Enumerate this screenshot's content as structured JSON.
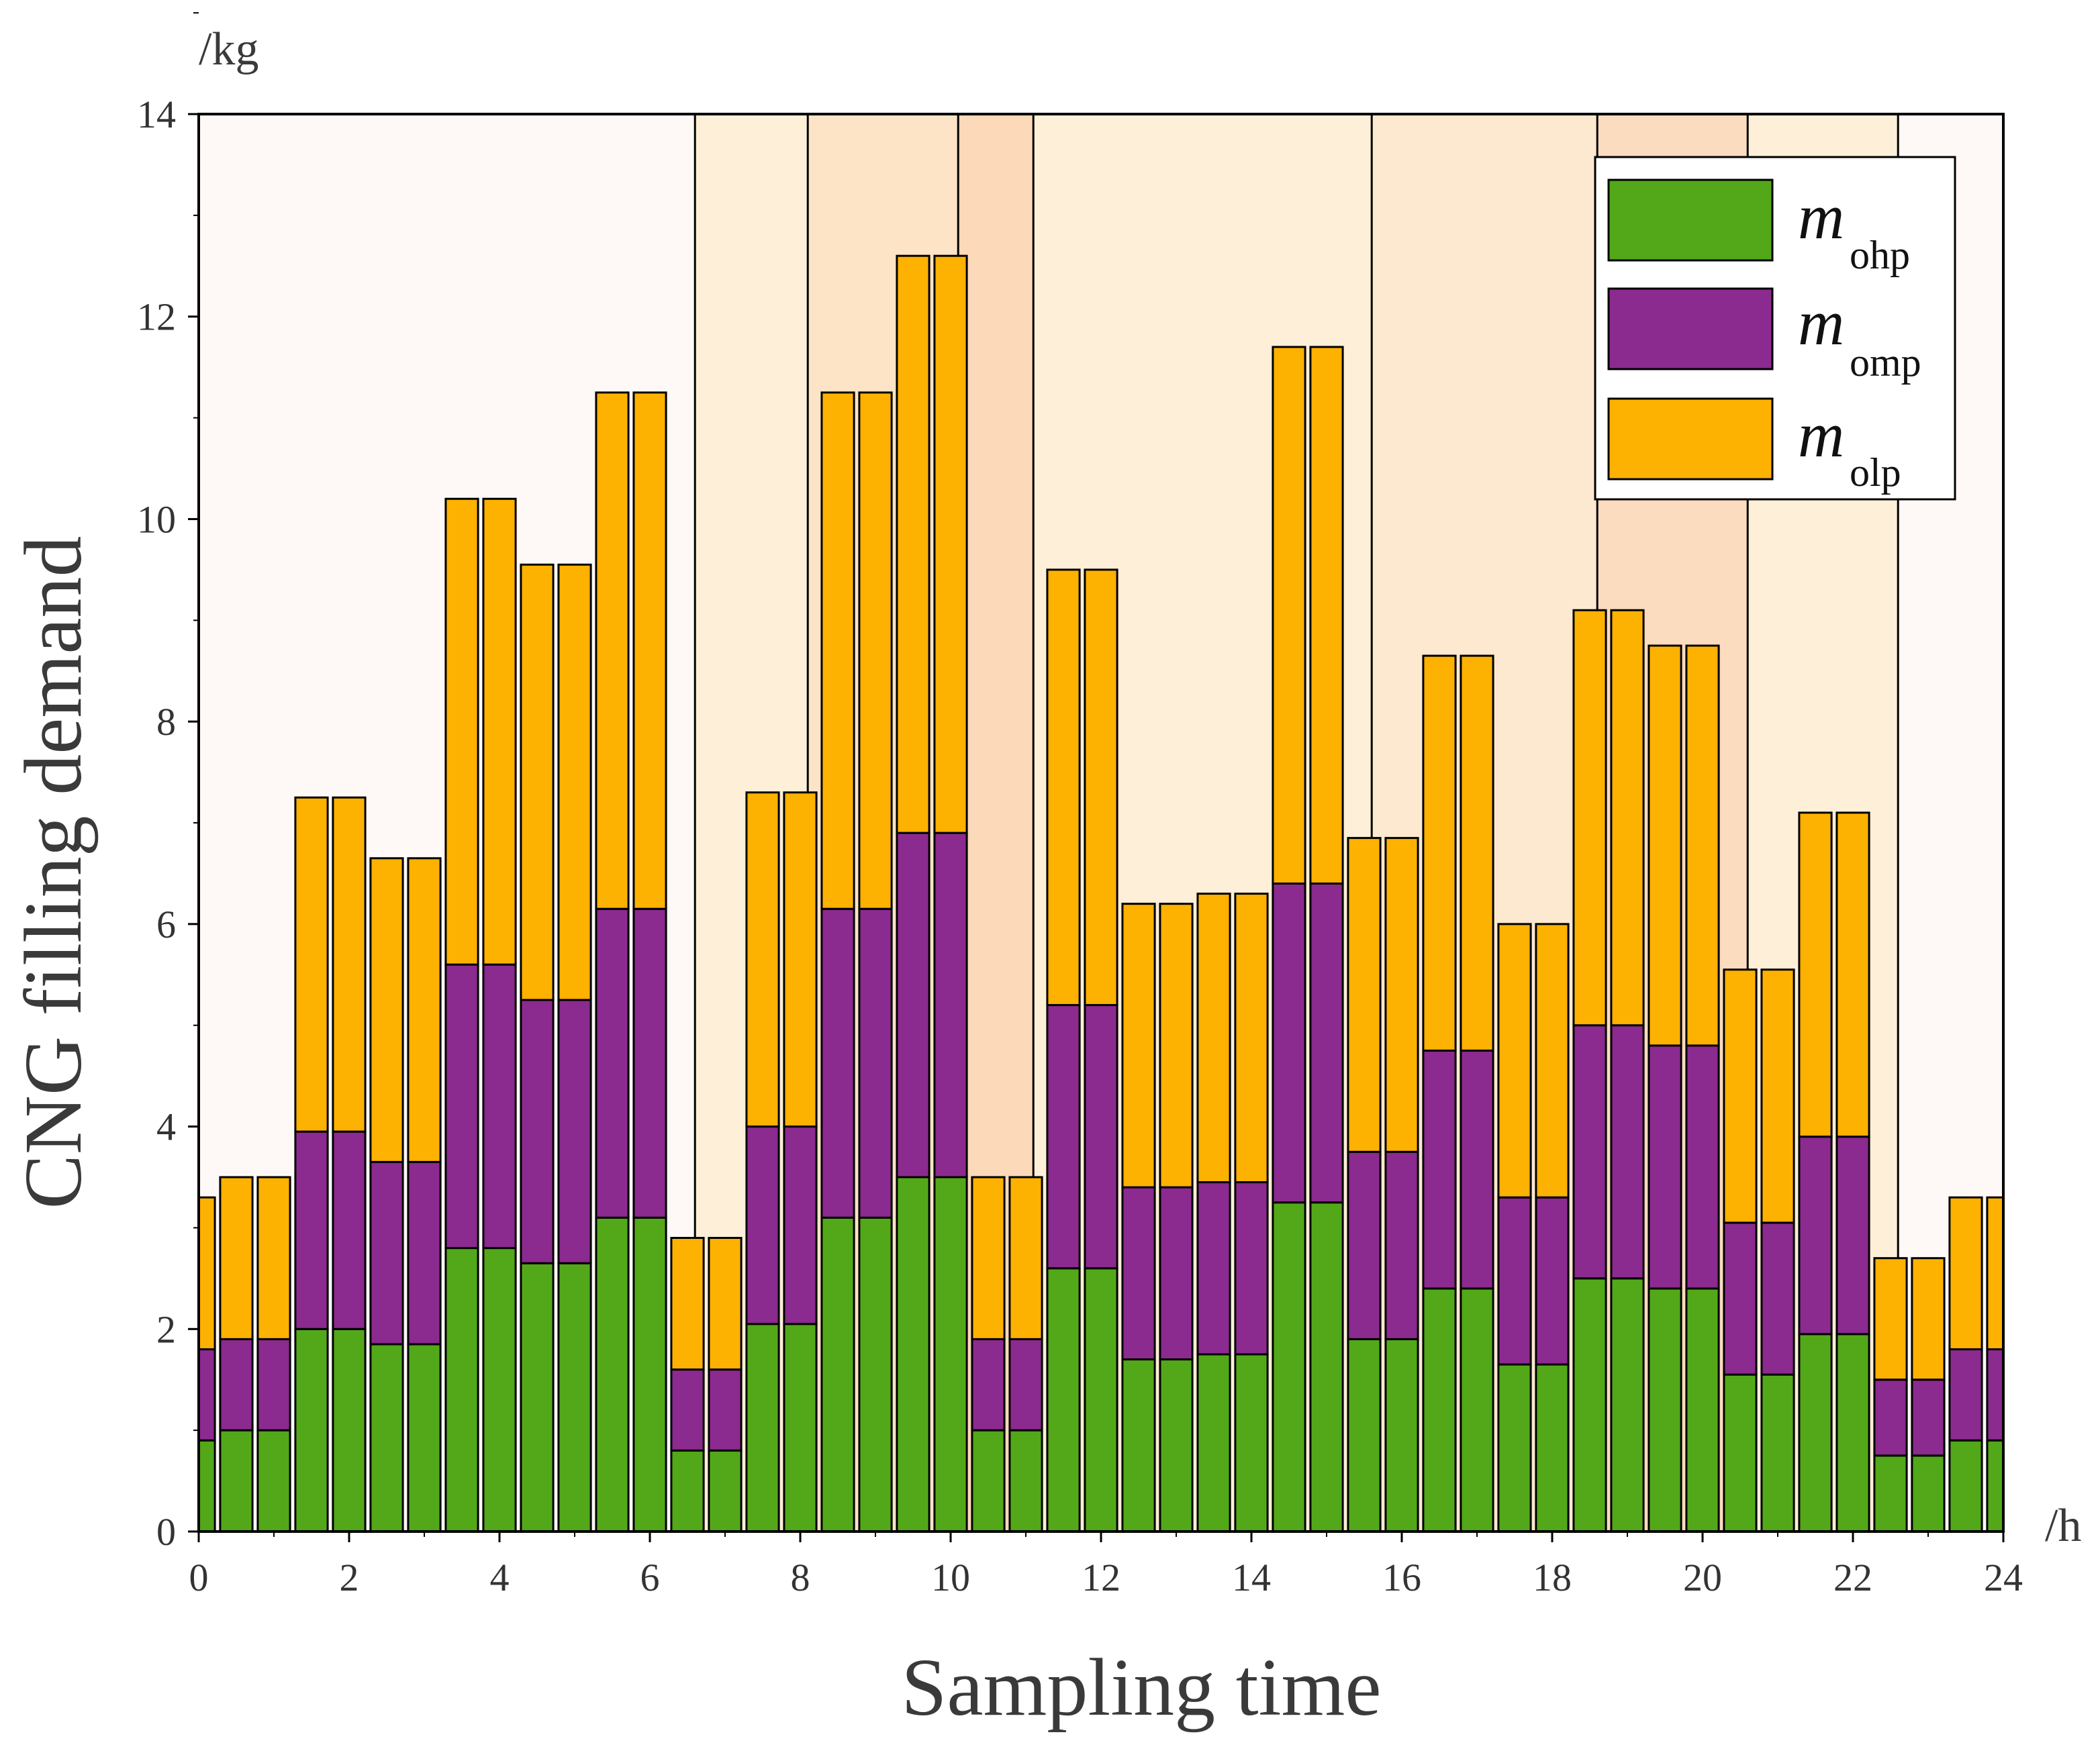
{
  "chart_data": {
    "type": "bar",
    "stacked": true,
    "title": "",
    "xlabel": "Sampling time",
    "ylabel": "CNG filling demand",
    "x_unit": "/h",
    "y_unit": "/kg",
    "xlim": [
      0,
      24
    ],
    "ylim": [
      0,
      14
    ],
    "x_ticks": [
      0,
      2,
      4,
      6,
      8,
      10,
      12,
      14,
      16,
      18,
      20,
      22,
      24
    ],
    "y_ticks": [
      0,
      2,
      4,
      6,
      8,
      10,
      12,
      14
    ],
    "x": [
      0,
      0.5,
      1,
      1.5,
      2,
      2.5,
      3,
      3.5,
      4,
      4.5,
      5,
      5.5,
      6,
      6.5,
      7,
      7.5,
      8,
      8.5,
      9,
      9.5,
      10,
      10.5,
      11,
      11.5,
      12,
      12.5,
      13,
      13.5,
      14,
      14.5,
      15,
      15.5,
      16,
      16.5,
      17,
      17.5,
      18,
      18.5,
      19,
      19.5,
      20,
      20.5,
      21,
      21.5,
      22,
      22.5,
      23,
      23.5,
      24
    ],
    "series": [
      {
        "name": "ohp",
        "color": "#52a818",
        "values": [
          0.9,
          1.0,
          1.0,
          2.0,
          2.0,
          1.85,
          1.85,
          2.8,
          2.8,
          2.65,
          2.65,
          3.1,
          3.1,
          0.8,
          0.8,
          2.05,
          2.05,
          3.1,
          3.1,
          3.5,
          3.5,
          1.0,
          1.0,
          2.6,
          2.6,
          1.7,
          1.7,
          1.75,
          1.75,
          3.25,
          3.25,
          1.9,
          1.9,
          2.4,
          2.4,
          1.65,
          1.65,
          2.5,
          2.5,
          2.4,
          2.4,
          1.55,
          1.55,
          1.95,
          1.95,
          0.75,
          0.75,
          0.9,
          0.9
        ]
      },
      {
        "name": "omp",
        "color": "#8b2a8f",
        "values": [
          0.9,
          0.9,
          0.9,
          1.95,
          1.95,
          1.8,
          1.8,
          2.8,
          2.8,
          2.6,
          2.6,
          3.05,
          3.05,
          0.8,
          0.8,
          1.95,
          1.95,
          3.05,
          3.05,
          3.4,
          3.4,
          0.9,
          0.9,
          2.6,
          2.6,
          1.7,
          1.7,
          1.7,
          1.7,
          3.15,
          3.15,
          1.85,
          1.85,
          2.35,
          2.35,
          1.65,
          1.65,
          2.5,
          2.5,
          2.4,
          2.4,
          1.5,
          1.5,
          1.95,
          1.95,
          0.75,
          0.75,
          0.9,
          0.9
        ]
      },
      {
        "name": "olp",
        "color": "#fdb100",
        "values": [
          1.5,
          1.6,
          1.6,
          3.3,
          3.3,
          3.0,
          3.0,
          4.6,
          4.6,
          4.3,
          4.3,
          5.1,
          5.1,
          1.3,
          1.3,
          3.3,
          3.3,
          5.1,
          5.1,
          5.7,
          5.7,
          1.6,
          1.6,
          4.3,
          4.3,
          2.8,
          2.8,
          2.85,
          2.85,
          5.3,
          5.3,
          3.1,
          3.1,
          3.9,
          3.9,
          2.7,
          2.7,
          4.1,
          4.1,
          3.95,
          3.95,
          2.5,
          2.5,
          3.2,
          3.2,
          1.2,
          1.2,
          1.5,
          1.5
        ]
      }
    ],
    "legend": {
      "position": "top-right",
      "entries": [
        {
          "symbol": "m",
          "subscript": "ohp",
          "color": "#52a818"
        },
        {
          "symbol": "m",
          "subscript": "omp",
          "color": "#8b2a8f"
        },
        {
          "symbol": "m",
          "subscript": "olp",
          "color": "#fdb100"
        }
      ]
    },
    "background_bands": [
      {
        "from": 0,
        "to": 6.6,
        "color": "#fef9f6"
      },
      {
        "from": 6.6,
        "to": 8.1,
        "color": "#feefd8"
      },
      {
        "from": 8.1,
        "to": 10.1,
        "color": "#fde4c6"
      },
      {
        "from": 10.1,
        "to": 11.1,
        "color": "#fcd9b8"
      },
      {
        "from": 11.1,
        "to": 15.6,
        "color": "#feefd8"
      },
      {
        "from": 15.6,
        "to": 18.6,
        "color": "#fde9d0"
      },
      {
        "from": 18.6,
        "to": 20.6,
        "color": "#fcdcbe"
      },
      {
        "from": 20.6,
        "to": 22.6,
        "color": "#feefd8"
      },
      {
        "from": 22.6,
        "to": 24,
        "color": "#fef9f6"
      }
    ]
  }
}
